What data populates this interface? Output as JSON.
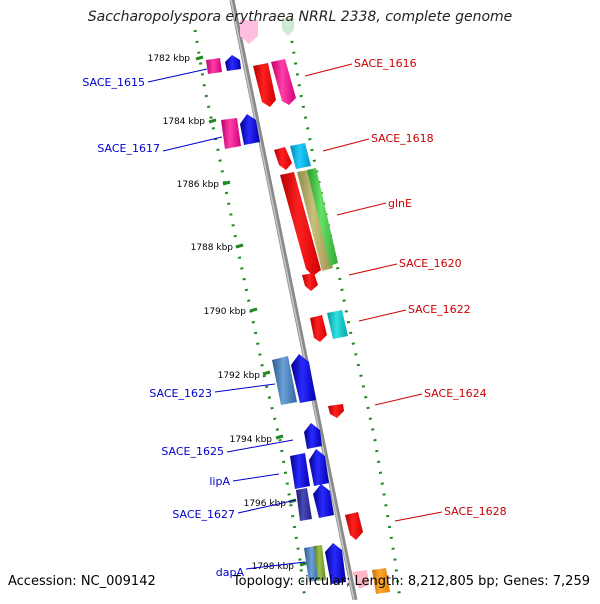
{
  "header": {
    "title": "Saccharopolyspora erythraea NRRL 2338, complete genome"
  },
  "footer": {
    "accession": "Accession: NC_009142",
    "summary": "Topology: circular; Length: 8,212,805 bp; Genes: 7,259"
  },
  "ruler": {
    "unit": "kbp",
    "ticks": [
      "1782 kbp",
      "1784 kbp",
      "1786 kbp",
      "1788 kbp",
      "1790 kbp",
      "1792 kbp",
      "1794 kbp",
      "1796 kbp",
      "1798 kbp"
    ]
  },
  "colors": {
    "forward_label": "#cc0000",
    "reverse_label": "#0000cc",
    "backbone": "#888888",
    "ruler": "#228822"
  },
  "genes_left": [
    {
      "label": "SACE_1615"
    },
    {
      "label": "SACE_1617"
    },
    {
      "label": "SACE_1623"
    },
    {
      "label": "SACE_1625"
    },
    {
      "label": "lipA"
    },
    {
      "label": "SACE_1627"
    },
    {
      "label": "dapA"
    }
  ],
  "genes_right": [
    {
      "label": "SACE_1616"
    },
    {
      "label": "SACE_1618"
    },
    {
      "label": "glnE"
    },
    {
      "label": "SACE_1620"
    },
    {
      "label": "SACE_1622"
    },
    {
      "label": "SACE_1624"
    },
    {
      "label": "SACE_1628"
    }
  ]
}
